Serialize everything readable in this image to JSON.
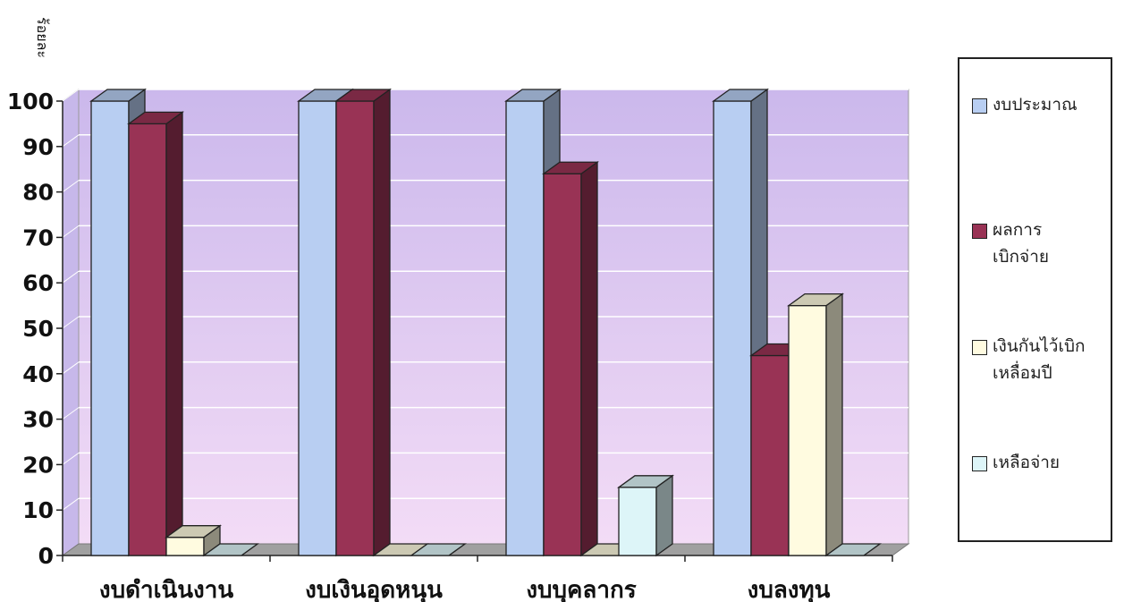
{
  "chart_data": {
    "type": "bar",
    "ylabel": "ร้อยละ",
    "ylim": [
      0,
      100
    ],
    "yticks": [
      "0",
      "10",
      "20",
      "30",
      "40",
      "50",
      "60",
      "70",
      "80",
      "90",
      "100"
    ],
    "categories": [
      "งบดำเนินงาน",
      "งบเงินอุดหนุน",
      "งบบุคลากร",
      "งบลงทุน"
    ],
    "series": [
      {
        "name": "งบประมาณ",
        "color": "#b8cef2",
        "values": [
          100,
          100,
          100,
          100
        ]
      },
      {
        "name": "ผลการ\nเบิกจ่าย",
        "color": "#993355",
        "values": [
          95,
          100,
          84,
          44
        ]
      },
      {
        "name": "เงินกันไว้เบิก\nเหลื่อมปี",
        "color": "#fffbe0",
        "values": [
          4,
          0,
          0,
          55
        ]
      },
      {
        "name": "เหลือจ่าย",
        "color": "#ddf5f8",
        "values": [
          0,
          0,
          15,
          0
        ]
      }
    ],
    "grid": true,
    "legend_position": "right",
    "style": "3d"
  }
}
